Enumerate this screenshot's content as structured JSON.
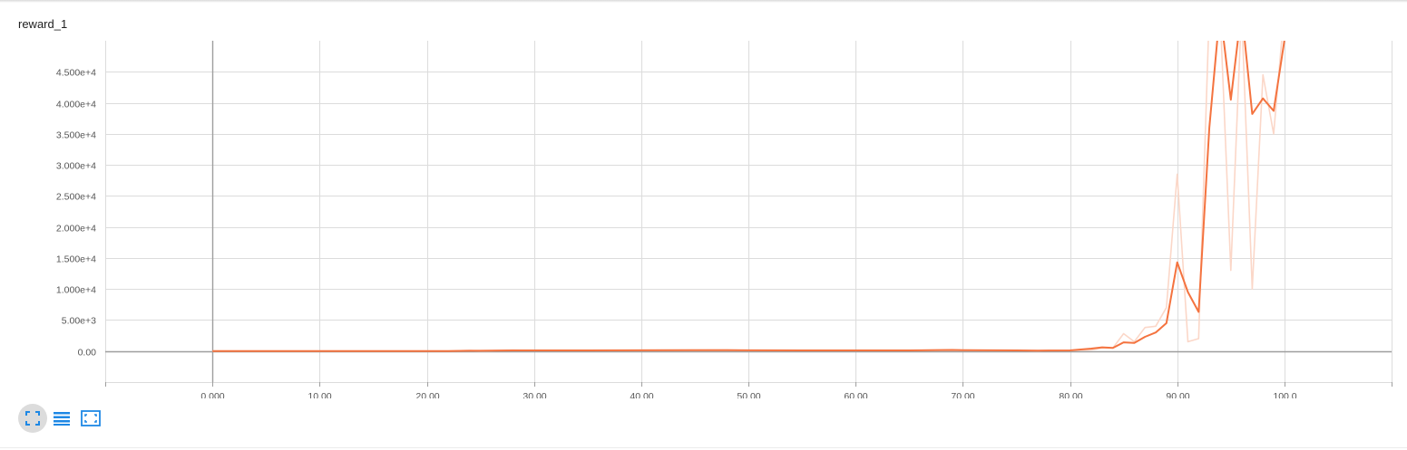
{
  "card": {
    "title": "reward_1"
  },
  "toolbar": {
    "buttons": [
      {
        "icon": "fit-to-data-icon",
        "active": true
      },
      {
        "icon": "data-table-icon",
        "active": false
      },
      {
        "icon": "expand-icon",
        "active": false
      }
    ],
    "icon_color": "#1e88e5"
  },
  "colors": {
    "smoothed": "#f4733f",
    "raw": "#fbd7c8",
    "grid": "#dcdcdc",
    "axis": "#9e9e9e"
  },
  "chart_data": {
    "type": "line",
    "title": "reward_1",
    "xlabel": "",
    "ylabel": "",
    "xlim": [
      -10,
      110
    ],
    "ylim": [
      -5000,
      50000
    ],
    "grid": true,
    "x_ticks": [
      0,
      10,
      20,
      30,
      40,
      50,
      60,
      70,
      80,
      90,
      100
    ],
    "x_tick_labels": [
      "0.000",
      "10.00",
      "20.00",
      "30.00",
      "40.00",
      "50.00",
      "60.00",
      "70.00",
      "80.00",
      "90.00",
      "100.0"
    ],
    "y_ticks": [
      0,
      5000,
      10000,
      15000,
      20000,
      25000,
      30000,
      35000,
      40000,
      45000
    ],
    "y_tick_labels": [
      "0.00",
      "5.00e+3",
      "1.000e+4",
      "1.500e+4",
      "2.000e+4",
      "2.500e+4",
      "3.000e+4",
      "3.500e+4",
      "4.000e+4",
      "4.500e+4"
    ],
    "series": [
      {
        "style": "raw",
        "x": [
          0,
          5,
          10,
          15,
          20,
          22,
          24,
          25,
          28,
          30,
          35,
          40,
          45,
          48,
          50,
          55,
          60,
          65,
          69,
          70,
          75,
          77,
          78,
          80,
          82,
          83,
          84,
          85,
          86,
          87,
          88,
          89,
          90,
          91,
          92,
          93,
          94,
          95,
          96,
          97,
          98,
          99,
          100
        ],
        "y": [
          0,
          0,
          0,
          0,
          0,
          0,
          100,
          0,
          150,
          100,
          100,
          150,
          150,
          200,
          100,
          100,
          100,
          100,
          200,
          150,
          100,
          50,
          100,
          100,
          200,
          500,
          500,
          2800,
          1500,
          3800,
          4000,
          7000,
          28500,
          1500,
          2000,
          55000,
          55000,
          13000,
          55000,
          10000,
          44500,
          35000,
          55000
        ]
      },
      {
        "style": "smoothed",
        "x": [
          0,
          5,
          10,
          15,
          20,
          22,
          24,
          25,
          28,
          30,
          35,
          40,
          45,
          48,
          50,
          55,
          60,
          65,
          69,
          70,
          75,
          77,
          78,
          80,
          82,
          83,
          84,
          85,
          86,
          87,
          88,
          89,
          90,
          91,
          92,
          93,
          94,
          95,
          96,
          97,
          98,
          99,
          100
        ],
        "y": [
          0,
          0,
          0,
          0,
          0,
          0,
          50,
          50,
          100,
          100,
          100,
          120,
          130,
          150,
          120,
          110,
          110,
          110,
          180,
          150,
          100,
          80,
          90,
          100,
          400,
          600,
          500,
          1400,
          1300,
          2300,
          3000,
          4500,
          14300,
          9500,
          6300,
          36000,
          55000,
          40500,
          55000,
          38200,
          40700,
          38700,
          50000
        ]
      }
    ]
  }
}
